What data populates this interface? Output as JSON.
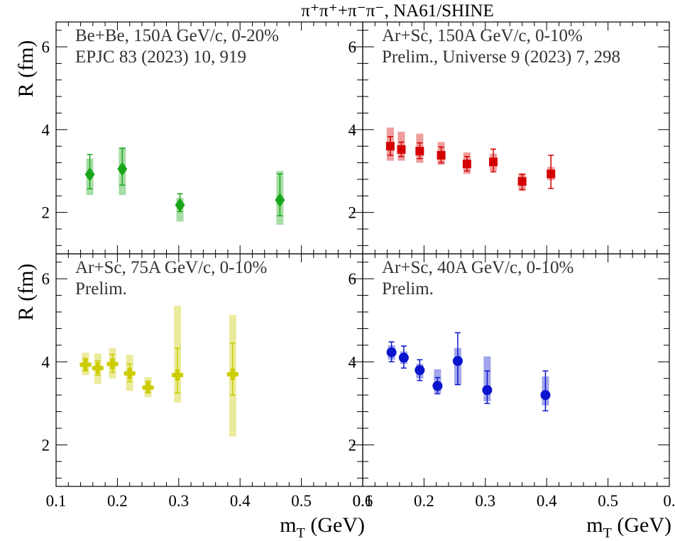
{
  "title": "π⁺π⁺+π⁻π⁻, NA61/SHINE",
  "xlabel": "m",
  "xlabel_sub": "T",
  "xlabel_unit": " (GeV)",
  "ylabel": "R (fm)",
  "colors": {
    "green": "#19a619",
    "red": "#d40000",
    "yellow": "#cccc00",
    "blue": "#0a14cc"
  },
  "chart_data": [
    {
      "type": "scatter",
      "panel": "top-left",
      "annotation": [
        "Be+Be, 150A GeV/c, 0-20%",
        "EPJC 83 (2023) 10, 919"
      ],
      "xlim": [
        0.1,
        0.6
      ],
      "ylim": [
        1.0,
        6.6
      ],
      "xticks": [
        "0.1",
        "0.2",
        "0.3",
        "0.4",
        "0.5",
        "0.6"
      ],
      "yticks": [
        "2",
        "4",
        "6"
      ],
      "marker": "diamond",
      "color": "#19a619",
      "points": [
        {
          "x": 0.155,
          "y": 2.92,
          "stat_lo": 2.57,
          "stat_hi": 3.4,
          "sys_lo": 2.42,
          "sys_hi": 3.3
        },
        {
          "x": 0.208,
          "y": 3.05,
          "stat_lo": 2.66,
          "stat_hi": 3.55,
          "sys_lo": 2.42,
          "sys_hi": 3.57
        },
        {
          "x": 0.302,
          "y": 2.18,
          "stat_lo": 2.02,
          "stat_hi": 2.45,
          "sys_lo": 1.78,
          "sys_hi": 2.35
        },
        {
          "x": 0.465,
          "y": 2.3,
          "stat_lo": 1.92,
          "stat_hi": 2.93,
          "sys_lo": 1.7,
          "sys_hi": 3.0
        }
      ]
    },
    {
      "type": "scatter",
      "panel": "top-right",
      "annotation": [
        "Ar+Sc, 150A GeV/c, 0-10%",
        "Prelim., Universe 9 (2023) 7, 298"
      ],
      "xlim": [
        0.1,
        0.6
      ],
      "ylim": [
        1.0,
        6.6
      ],
      "xticks": [
        "0.1",
        "0.2",
        "0.3",
        "0.4",
        "0.5",
        "0."
      ],
      "yticks": [
        "2",
        "4",
        "6"
      ],
      "marker": "square",
      "color": "#d40000",
      "points": [
        {
          "x": 0.145,
          "y": 3.6,
          "stat_lo": 3.38,
          "stat_hi": 3.83,
          "sys_lo": 3.25,
          "sys_hi": 4.05
        },
        {
          "x": 0.163,
          "y": 3.52,
          "stat_lo": 3.35,
          "stat_hi": 3.7,
          "sys_lo": 3.25,
          "sys_hi": 3.95
        },
        {
          "x": 0.193,
          "y": 3.48,
          "stat_lo": 3.3,
          "stat_hi": 3.68,
          "sys_lo": 3.2,
          "sys_hi": 3.9
        },
        {
          "x": 0.228,
          "y": 3.38,
          "stat_lo": 3.2,
          "stat_hi": 3.58,
          "sys_lo": 3.15,
          "sys_hi": 3.7
        },
        {
          "x": 0.27,
          "y": 3.17,
          "stat_lo": 3.0,
          "stat_hi": 3.35,
          "sys_lo": 2.93,
          "sys_hi": 3.45
        },
        {
          "x": 0.313,
          "y": 3.22,
          "stat_lo": 2.98,
          "stat_hi": 3.53,
          "sys_lo": 3.0,
          "sys_hi": 3.42
        },
        {
          "x": 0.36,
          "y": 2.75,
          "stat_lo": 2.55,
          "stat_hi": 2.92,
          "sys_lo": 2.52,
          "sys_hi": 2.95
        },
        {
          "x": 0.407,
          "y": 2.93,
          "stat_lo": 2.58,
          "stat_hi": 3.38,
          "sys_lo": 2.78,
          "sys_hi": 3.1
        }
      ]
    },
    {
      "type": "scatter",
      "panel": "bottom-left",
      "annotation": [
        "Ar+Sc, 75A GeV/c, 0-10%",
        "Prelim."
      ],
      "xlim": [
        0.1,
        0.6
      ],
      "ylim": [
        1.0,
        6.6
      ],
      "xticks": [
        "0.1",
        "0.2",
        "0.3",
        "0.4",
        "0.5",
        "0.6"
      ],
      "yticks": [
        "2",
        "4",
        "6"
      ],
      "marker": "cross",
      "color": "#cccc00",
      "points": [
        {
          "x": 0.148,
          "y": 3.93,
          "stat_lo": 3.78,
          "stat_hi": 4.08,
          "sys_lo": 3.68,
          "sys_hi": 4.22
        },
        {
          "x": 0.168,
          "y": 3.85,
          "stat_lo": 3.68,
          "stat_hi": 4.02,
          "sys_lo": 3.47,
          "sys_hi": 4.2
        },
        {
          "x": 0.192,
          "y": 3.95,
          "stat_lo": 3.75,
          "stat_hi": 4.18,
          "sys_lo": 3.6,
          "sys_hi": 4.33
        },
        {
          "x": 0.22,
          "y": 3.72,
          "stat_lo": 3.52,
          "stat_hi": 3.95,
          "sys_lo": 3.3,
          "sys_hi": 4.17
        },
        {
          "x": 0.25,
          "y": 3.38,
          "stat_lo": 3.25,
          "stat_hi": 3.53,
          "sys_lo": 3.15,
          "sys_hi": 3.63
        },
        {
          "x": 0.298,
          "y": 3.68,
          "stat_lo": 3.25,
          "stat_hi": 4.33,
          "sys_lo": 3.02,
          "sys_hi": 5.35
        },
        {
          "x": 0.388,
          "y": 3.7,
          "stat_lo": 3.2,
          "stat_hi": 4.45,
          "sys_lo": 2.2,
          "sys_hi": 5.13
        }
      ]
    },
    {
      "type": "scatter",
      "panel": "bottom-right",
      "annotation": [
        "Ar+Sc, 40A GeV/c, 0-10%",
        "Prelim."
      ],
      "xlim": [
        0.1,
        0.6
      ],
      "ylim": [
        1.0,
        6.6
      ],
      "xticks": [
        "0.1",
        "0.2",
        "0.3",
        "0.4",
        "0.5",
        "0."
      ],
      "yticks": [
        "2",
        "4",
        "6"
      ],
      "marker": "circle",
      "color": "#0a14cc",
      "points": [
        {
          "x": 0.147,
          "y": 4.23,
          "stat_lo": 4.0,
          "stat_hi": 4.48,
          "sys_lo": 4.05,
          "sys_hi": 4.4
        },
        {
          "x": 0.167,
          "y": 4.1,
          "stat_lo": 3.85,
          "stat_hi": 4.38,
          "sys_lo": 3.95,
          "sys_hi": 4.25
        },
        {
          "x": 0.193,
          "y": 3.8,
          "stat_lo": 3.55,
          "stat_hi": 4.05,
          "sys_lo": 3.6,
          "sys_hi": 3.95
        },
        {
          "x": 0.222,
          "y": 3.42,
          "stat_lo": 3.23,
          "stat_hi": 3.62,
          "sys_lo": 3.25,
          "sys_hi": 3.82
        },
        {
          "x": 0.255,
          "y": 4.02,
          "stat_lo": 3.45,
          "stat_hi": 4.7,
          "sys_lo": 3.45,
          "sys_hi": 4.33
        },
        {
          "x": 0.303,
          "y": 3.32,
          "stat_lo": 3.0,
          "stat_hi": 3.78,
          "sys_lo": 3.05,
          "sys_hi": 4.13
        },
        {
          "x": 0.398,
          "y": 3.2,
          "stat_lo": 2.82,
          "stat_hi": 3.78,
          "sys_lo": 2.95,
          "sys_hi": 3.65
        }
      ]
    }
  ]
}
